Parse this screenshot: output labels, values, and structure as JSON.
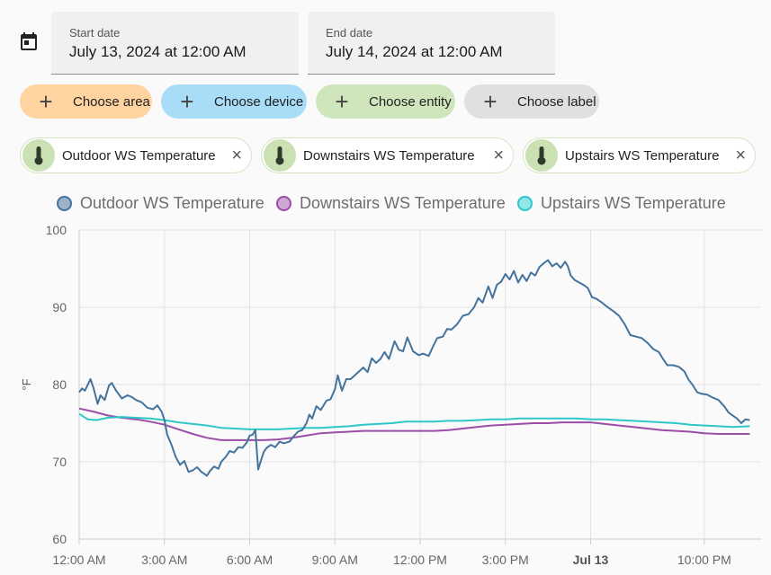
{
  "date_range": {
    "start_label": "Start date",
    "start_value": "July 13, 2024 at 12:00 AM",
    "end_label": "End date",
    "end_value": "July 14, 2024 at 12:00 AM"
  },
  "target_picker": {
    "choose_area": "Choose area",
    "choose_device": "Choose device",
    "choose_entity": "Choose entity",
    "choose_label": "Choose label",
    "colors": {
      "area": "#ffd4a0",
      "device": "#a8dcf7",
      "entity": "#cfe6bd",
      "label": "#e0e0e0"
    }
  },
  "selected_entities": [
    {
      "name": "Outdoor WS Temperature",
      "icon": "thermometer-icon"
    },
    {
      "name": "Downstairs WS Temperature",
      "icon": "thermometer-icon"
    },
    {
      "name": "Upstairs WS Temperature",
      "icon": "thermometer-icon"
    }
  ],
  "chart_data": {
    "type": "line",
    "ylabel": "°F",
    "ylim": [
      60,
      100
    ],
    "y_ticks": [
      "100",
      "90",
      "80",
      "70",
      "60"
    ],
    "x_ticks": [
      "12:00 AM",
      "3:00 AM",
      "6:00 AM",
      "9:00 AM",
      "12:00 PM",
      "3:00 PM",
      "Jul 13",
      "10:00 PM"
    ],
    "x_hours_range": [
      0,
      24
    ],
    "grid": true,
    "legend_position": "top",
    "series": [
      {
        "name": "Outdoor WS Temperature",
        "color": "#44739e",
        "points": [
          [
            0,
            79
          ],
          [
            0.1,
            79.5
          ],
          [
            0.2,
            79.2
          ],
          [
            0.4,
            80.7
          ],
          [
            0.5,
            79.6
          ],
          [
            0.65,
            77.5
          ],
          [
            0.75,
            78.6
          ],
          [
            0.9,
            78
          ],
          [
            1.05,
            79.9
          ],
          [
            1.15,
            80.2
          ],
          [
            1.3,
            79.2
          ],
          [
            1.5,
            78.2
          ],
          [
            1.7,
            78.6
          ],
          [
            1.85,
            78.4
          ],
          [
            2.0,
            78.0
          ],
          [
            2.2,
            77.7
          ],
          [
            2.4,
            77.0
          ],
          [
            2.6,
            76.8
          ],
          [
            2.75,
            77.3
          ],
          [
            2.9,
            76.5
          ],
          [
            3.0,
            75.4
          ],
          [
            3.1,
            73.5
          ],
          [
            3.25,
            72.2
          ],
          [
            3.4,
            70.6
          ],
          [
            3.55,
            69.6
          ],
          [
            3.7,
            70.1
          ],
          [
            3.85,
            68.7
          ],
          [
            4.0,
            68.9
          ],
          [
            4.15,
            69.3
          ],
          [
            4.3,
            68.7
          ],
          [
            4.5,
            68.2
          ],
          [
            4.6,
            68.8
          ],
          [
            4.75,
            69.4
          ],
          [
            4.9,
            69.1
          ],
          [
            5.0,
            70.0
          ],
          [
            5.15,
            70.6
          ],
          [
            5.3,
            71.4
          ],
          [
            5.45,
            71.2
          ],
          [
            5.6,
            71.9
          ],
          [
            5.75,
            71.8
          ],
          [
            5.9,
            72.5
          ],
          [
            6.0,
            73.4
          ],
          [
            6.1,
            73.5
          ],
          [
            6.2,
            74.1
          ],
          [
            6.3,
            69.0
          ],
          [
            6.4,
            70.2
          ],
          [
            6.5,
            71.3
          ],
          [
            6.6,
            71.8
          ],
          [
            6.75,
            72.2
          ],
          [
            6.9,
            71.9
          ],
          [
            7.05,
            72.6
          ],
          [
            7.2,
            72.4
          ],
          [
            7.4,
            72.6
          ],
          [
            7.55,
            73.3
          ],
          [
            7.7,
            73.9
          ],
          [
            7.85,
            74.1
          ],
          [
            8.0,
            75.0
          ],
          [
            8.1,
            76.1
          ],
          [
            8.2,
            75.6
          ],
          [
            8.35,
            77.2
          ],
          [
            8.5,
            76.7
          ],
          [
            8.7,
            77.9
          ],
          [
            8.85,
            78.1
          ],
          [
            9.0,
            79.4
          ],
          [
            9.1,
            81.2
          ],
          [
            9.25,
            79.2
          ],
          [
            9.4,
            80.7
          ],
          [
            9.55,
            80.7
          ],
          [
            9.7,
            81.2
          ],
          [
            9.85,
            81.7
          ],
          [
            10.0,
            82.2
          ],
          [
            10.15,
            81.6
          ],
          [
            10.3,
            83.4
          ],
          [
            10.45,
            82.8
          ],
          [
            10.6,
            83.3
          ],
          [
            10.75,
            84.2
          ],
          [
            10.9,
            83.3
          ],
          [
            11.1,
            85.6
          ],
          [
            11.25,
            84.5
          ],
          [
            11.4,
            84.3
          ],
          [
            11.55,
            86.1
          ],
          [
            11.75,
            84.3
          ],
          [
            11.95,
            83.8
          ],
          [
            12.1,
            84.0
          ],
          [
            12.3,
            83.7
          ],
          [
            12.45,
            84.9
          ],
          [
            12.6,
            86.0
          ],
          [
            12.8,
            86.2
          ],
          [
            12.95,
            87.2
          ],
          [
            13.1,
            87.1
          ],
          [
            13.3,
            87.8
          ],
          [
            13.5,
            88.9
          ],
          [
            13.7,
            89.1
          ],
          [
            13.9,
            90.0
          ],
          [
            14.05,
            91.2
          ],
          [
            14.2,
            90.6
          ],
          [
            14.4,
            92.7
          ],
          [
            14.55,
            91.2
          ],
          [
            14.7,
            92.9
          ],
          [
            14.85,
            93.3
          ],
          [
            15.0,
            94.3
          ],
          [
            15.15,
            93.6
          ],
          [
            15.3,
            94.7
          ],
          [
            15.45,
            93.2
          ],
          [
            15.6,
            94.2
          ],
          [
            15.75,
            93.4
          ],
          [
            15.9,
            94.5
          ],
          [
            16.05,
            94.1
          ],
          [
            16.2,
            95.2
          ],
          [
            16.35,
            95.7
          ],
          [
            16.5,
            96.1
          ],
          [
            16.65,
            95.3
          ],
          [
            16.8,
            95.7
          ],
          [
            16.95,
            95.1
          ],
          [
            17.1,
            95.9
          ],
          [
            17.2,
            95.3
          ],
          [
            17.3,
            94.1
          ],
          [
            17.45,
            93.5
          ],
          [
            17.6,
            93.2
          ],
          [
            17.75,
            92.9
          ],
          [
            17.9,
            92.5
          ],
          [
            18.05,
            91.3
          ],
          [
            18.2,
            91.1
          ],
          [
            18.4,
            90.6
          ],
          [
            18.6,
            90.0
          ],
          [
            18.8,
            89.5
          ],
          [
            19.0,
            88.9
          ],
          [
            19.2,
            87.8
          ],
          [
            19.4,
            86.4
          ],
          [
            19.6,
            86.2
          ],
          [
            19.8,
            86.0
          ],
          [
            20.0,
            85.4
          ],
          [
            20.2,
            84.6
          ],
          [
            20.4,
            84.2
          ],
          [
            20.55,
            83.3
          ],
          [
            20.7,
            82.5
          ],
          [
            20.9,
            82.5
          ],
          [
            21.1,
            82.3
          ],
          [
            21.3,
            81.7
          ],
          [
            21.45,
            80.6
          ],
          [
            21.6,
            79.9
          ],
          [
            21.75,
            79.0
          ],
          [
            21.9,
            78.8
          ],
          [
            22.1,
            78.7
          ],
          [
            22.3,
            78.3
          ],
          [
            22.5,
            78.0
          ],
          [
            22.7,
            77.2
          ],
          [
            22.85,
            76.4
          ],
          [
            23.0,
            76.0
          ],
          [
            23.15,
            75.6
          ],
          [
            23.3,
            75.0
          ],
          [
            23.45,
            75.5
          ],
          [
            23.6,
            75.4
          ]
        ]
      },
      {
        "name": "Downstairs WS Temperature",
        "color": "#9b4ea8",
        "points": [
          [
            0,
            76.9
          ],
          [
            0.5,
            76.5
          ],
          [
            1.0,
            76.0
          ],
          [
            1.5,
            75.7
          ],
          [
            2.0,
            75.5
          ],
          [
            2.5,
            75.2
          ],
          [
            3.0,
            74.8
          ],
          [
            3.5,
            74.2
          ],
          [
            4.0,
            73.6
          ],
          [
            4.5,
            73.1
          ],
          [
            5.0,
            72.8
          ],
          [
            5.5,
            72.8
          ],
          [
            6.0,
            72.8
          ],
          [
            6.5,
            72.8
          ],
          [
            7.0,
            72.9
          ],
          [
            7.5,
            73.1
          ],
          [
            8.0,
            73.4
          ],
          [
            8.5,
            73.7
          ],
          [
            9.0,
            73.8
          ],
          [
            9.5,
            73.9
          ],
          [
            10.0,
            74.0
          ],
          [
            10.5,
            74.0
          ],
          [
            11.0,
            74.0
          ],
          [
            11.5,
            74.0
          ],
          [
            12.0,
            74.0
          ],
          [
            12.5,
            74.0
          ],
          [
            13.0,
            74.1
          ],
          [
            13.5,
            74.3
          ],
          [
            14.0,
            74.5
          ],
          [
            14.5,
            74.7
          ],
          [
            15.0,
            74.8
          ],
          [
            15.5,
            74.9
          ],
          [
            16.0,
            75.0
          ],
          [
            16.5,
            75.0
          ],
          [
            17.0,
            75.1
          ],
          [
            17.5,
            75.1
          ],
          [
            18.0,
            75.1
          ],
          [
            18.5,
            74.9
          ],
          [
            19.0,
            74.7
          ],
          [
            19.5,
            74.5
          ],
          [
            20.0,
            74.3
          ],
          [
            20.5,
            74.1
          ],
          [
            21.0,
            74.0
          ],
          [
            21.5,
            73.9
          ],
          [
            22.0,
            73.7
          ],
          [
            22.5,
            73.6
          ],
          [
            23.0,
            73.6
          ],
          [
            23.6,
            73.6
          ]
        ]
      },
      {
        "name": "Upstairs WS Temperature",
        "color": "#2ec7c9",
        "points": [
          [
            0,
            76.2
          ],
          [
            0.3,
            75.5
          ],
          [
            0.6,
            75.4
          ],
          [
            1.0,
            75.7
          ],
          [
            1.5,
            75.8
          ],
          [
            2.0,
            75.7
          ],
          [
            2.5,
            75.6
          ],
          [
            3.0,
            75.4
          ],
          [
            3.5,
            75.1
          ],
          [
            4.0,
            74.9
          ],
          [
            4.5,
            74.7
          ],
          [
            5.0,
            74.4
          ],
          [
            5.5,
            74.3
          ],
          [
            6.0,
            74.2
          ],
          [
            6.5,
            74.2
          ],
          [
            7.0,
            74.2
          ],
          [
            7.5,
            74.3
          ],
          [
            8.0,
            74.4
          ],
          [
            8.5,
            74.4
          ],
          [
            9.0,
            74.5
          ],
          [
            9.5,
            74.6
          ],
          [
            10.0,
            74.8
          ],
          [
            10.5,
            74.9
          ],
          [
            11.0,
            75.0
          ],
          [
            11.5,
            75.2
          ],
          [
            12.0,
            75.2
          ],
          [
            12.5,
            75.2
          ],
          [
            13.0,
            75.3
          ],
          [
            13.5,
            75.3
          ],
          [
            14.0,
            75.4
          ],
          [
            14.5,
            75.5
          ],
          [
            15.0,
            75.5
          ],
          [
            15.5,
            75.6
          ],
          [
            16.0,
            75.6
          ],
          [
            16.5,
            75.6
          ],
          [
            17.0,
            75.6
          ],
          [
            17.5,
            75.6
          ],
          [
            18.0,
            75.5
          ],
          [
            18.5,
            75.5
          ],
          [
            19.0,
            75.4
          ],
          [
            19.5,
            75.3
          ],
          [
            20.0,
            75.2
          ],
          [
            20.5,
            75.1
          ],
          [
            21.0,
            75.0
          ],
          [
            21.5,
            74.8
          ],
          [
            22.0,
            74.7
          ],
          [
            22.5,
            74.6
          ],
          [
            23.0,
            74.5
          ],
          [
            23.6,
            74.6
          ]
        ]
      }
    ]
  }
}
